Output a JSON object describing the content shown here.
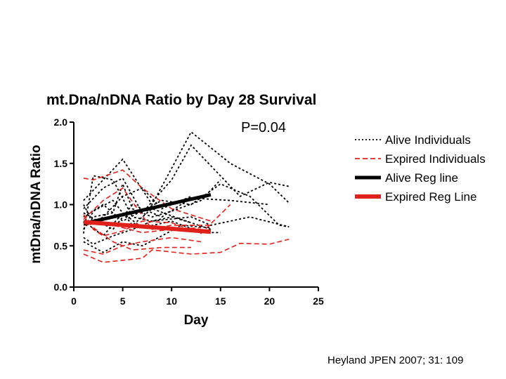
{
  "chart_data": {
    "type": "line",
    "title": "mt.Dna/nDNA Ratio by Day 28 Survival",
    "xlabel": "Day",
    "ylabel": "mtDna/nDNA Ratio",
    "xlim": [
      0,
      25
    ],
    "ylim": [
      0,
      2
    ],
    "xticks": [
      "0",
      "5",
      "10",
      "15",
      "20",
      "25"
    ],
    "yticks": [
      "0.0",
      "0.5",
      "1.0",
      "1.5",
      "2.0"
    ],
    "annotation": "P=0.04",
    "grid": false,
    "legend_position": "right",
    "legend": [
      {
        "label": "Alive Individuals",
        "style": "dotted",
        "color": "#000000"
      },
      {
        "label": "Expired Individuals",
        "style": "dashed",
        "color": "#e0201b"
      },
      {
        "label": "Alive  Reg line",
        "style": "solid",
        "color": "#000000"
      },
      {
        "label": "Expired Reg  Line",
        "style": "solid",
        "color": "#e0201b"
      }
    ],
    "series": [
      {
        "group": "alive",
        "points": [
          [
            1,
            1.05
          ],
          [
            3,
            1.3
          ],
          [
            5,
            1.55
          ],
          [
            8,
            1.0
          ],
          [
            12,
            1.88
          ],
          [
            16,
            1.5
          ],
          [
            20,
            1.25
          ],
          [
            22,
            1.02
          ]
        ]
      },
      {
        "group": "alive",
        "points": [
          [
            1,
            0.95
          ],
          [
            3,
            1.2
          ],
          [
            5,
            1.32
          ],
          [
            7,
            0.9
          ],
          [
            10,
            1.3
          ],
          [
            12,
            1.72
          ],
          [
            17,
            1.1
          ],
          [
            20,
            1.27
          ],
          [
            22,
            1.22
          ]
        ]
      },
      {
        "group": "alive",
        "points": [
          [
            1,
            0.9
          ],
          [
            4,
            0.7
          ],
          [
            6,
            1.0
          ],
          [
            9,
            0.85
          ],
          [
            12,
            1.08
          ],
          [
            16,
            1.05
          ],
          [
            20,
            1.0
          ]
        ]
      },
      {
        "group": "alive",
        "points": [
          [
            1,
            0.85
          ],
          [
            3,
            1.0
          ],
          [
            5,
            0.8
          ],
          [
            9,
            1.05
          ],
          [
            12,
            1.0
          ],
          [
            15,
            1.25
          ],
          [
            18,
            1.1
          ],
          [
            21,
            0.75
          ],
          [
            22,
            0.73
          ]
        ]
      },
      {
        "group": "alive",
        "points": [
          [
            1,
            0.8
          ],
          [
            3,
            0.62
          ],
          [
            5,
            0.9
          ],
          [
            7,
            0.72
          ],
          [
            10,
            0.8
          ],
          [
            13,
            0.66
          ],
          [
            15,
            0.66
          ]
        ]
      },
      {
        "group": "alive",
        "points": [
          [
            1,
            0.7
          ],
          [
            2,
            0.92
          ],
          [
            4,
            1.05
          ],
          [
            6,
            0.75
          ],
          [
            8,
            0.95
          ],
          [
            11,
            0.82
          ],
          [
            14,
            0.7
          ]
        ]
      },
      {
        "group": "alive",
        "points": [
          [
            1,
            0.6
          ],
          [
            2,
            0.52
          ],
          [
            4,
            0.62
          ],
          [
            6,
            0.7
          ],
          [
            8,
            0.8
          ],
          [
            12,
            0.85
          ],
          [
            14,
            0.75
          ],
          [
            18,
            0.85
          ],
          [
            22,
            0.73
          ]
        ]
      },
      {
        "group": "alive",
        "points": [
          [
            1,
            0.55
          ],
          [
            3,
            0.42
          ],
          [
            5,
            0.55
          ],
          [
            7,
            0.5
          ],
          [
            9,
            0.62
          ],
          [
            11,
            0.75
          ],
          [
            14,
            0.72
          ]
        ]
      },
      {
        "group": "alive",
        "points": [
          [
            1,
            1.0
          ],
          [
            2,
            0.78
          ],
          [
            3,
            0.85
          ],
          [
            5,
            1.1
          ],
          [
            7,
            1.2
          ],
          [
            9,
            0.95
          ],
          [
            12,
            1.1
          ]
        ]
      },
      {
        "group": "alive",
        "points": [
          [
            1,
            0.7
          ],
          [
            2,
            0.85
          ],
          [
            4,
            0.9
          ],
          [
            5,
            1.25
          ],
          [
            6,
            0.95
          ],
          [
            8,
            0.85
          ],
          [
            10,
            0.92
          ],
          [
            13,
            1.05
          ],
          [
            15,
            1.3
          ]
        ]
      },
      {
        "group": "alive",
        "points": [
          [
            1,
            0.65
          ],
          [
            2,
            1.35
          ],
          [
            4,
            1.3
          ],
          [
            6,
            0.85
          ],
          [
            8,
            0.8
          ],
          [
            10,
            0.85
          ],
          [
            12,
            0.78
          ]
        ]
      },
      {
        "group": "expired",
        "points": [
          [
            1,
            1.32
          ],
          [
            2,
            1.3
          ],
          [
            5,
            1.42
          ],
          [
            7,
            1.2
          ],
          [
            10,
            0.95
          ],
          [
            14,
            0.8
          ]
        ]
      },
      {
        "group": "expired",
        "points": [
          [
            1,
            0.88
          ],
          [
            2,
            0.7
          ],
          [
            3,
            0.62
          ],
          [
            5,
            0.68
          ],
          [
            7,
            0.8
          ],
          [
            10,
            0.78
          ],
          [
            13,
            0.65
          ],
          [
            16,
            1.0
          ]
        ]
      },
      {
        "group": "expired",
        "points": [
          [
            1,
            0.82
          ],
          [
            3,
            1.05
          ],
          [
            5,
            1.2
          ],
          [
            8,
            0.7
          ],
          [
            10,
            0.75
          ],
          [
            14,
            0.75
          ]
        ]
      },
      {
        "group": "expired",
        "points": [
          [
            1,
            0.75
          ],
          [
            3,
            0.78
          ],
          [
            5,
            0.72
          ],
          [
            7,
            0.66
          ],
          [
            10,
            0.7
          ],
          [
            13,
            0.72
          ]
        ]
      },
      {
        "group": "expired",
        "points": [
          [
            1,
            0.45
          ],
          [
            3,
            0.4
          ],
          [
            5,
            0.5
          ],
          [
            7,
            0.55
          ],
          [
            10,
            0.6
          ],
          [
            13,
            0.55
          ]
        ]
      },
      {
        "group": "expired",
        "points": [
          [
            1,
            0.4
          ],
          [
            3,
            0.3
          ],
          [
            7,
            0.35
          ],
          [
            8,
            0.45
          ],
          [
            12,
            0.4
          ],
          [
            15,
            0.42
          ],
          [
            17,
            0.53
          ],
          [
            20,
            0.52
          ],
          [
            22,
            0.58
          ]
        ]
      },
      {
        "group": "expired",
        "points": [
          [
            2,
            0.72
          ],
          [
            4,
            0.55
          ],
          [
            6,
            0.45
          ],
          [
            9,
            0.48
          ],
          [
            12,
            0.48
          ]
        ]
      }
    ],
    "regression": [
      {
        "group": "alive",
        "points": [
          [
            1,
            0.77
          ],
          [
            14,
            1.12
          ]
        ]
      },
      {
        "group": "expired",
        "points": [
          [
            1,
            0.79
          ],
          [
            14,
            0.67
          ]
        ]
      }
    ]
  },
  "citation": "Heyland JPEN 2007; 31: 109"
}
